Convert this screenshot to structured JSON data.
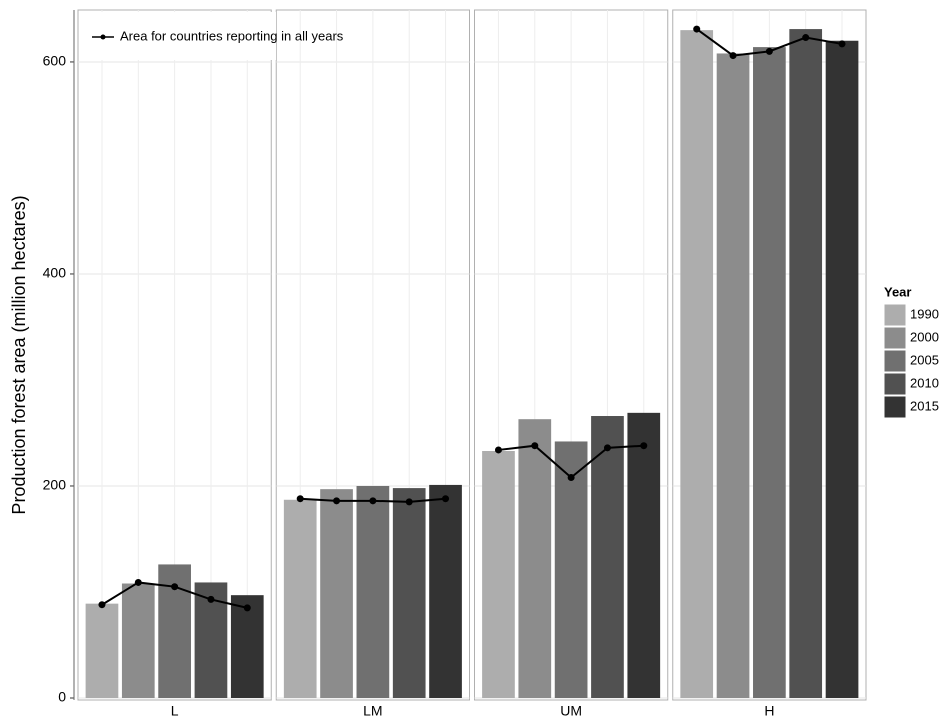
{
  "chart_data": {
    "type": "faceted-bar-line",
    "y_label": "Production forest area (million hectares)",
    "categories": [
      "L",
      "LM",
      "UM",
      "H"
    ],
    "legend_title": "Year",
    "series": [
      {
        "name": "1990",
        "color": "#adadad",
        "values": [
          89,
          187,
          233,
          630
        ]
      },
      {
        "name": "2000",
        "color": "#8c8c8c",
        "values": [
          108,
          197,
          263,
          608
        ]
      },
      {
        "name": "2005",
        "color": "#707070",
        "values": [
          126,
          200,
          242,
          614
        ]
      },
      {
        "name": "2010",
        "color": "#515151",
        "values": [
          109,
          198,
          266,
          631
        ]
      },
      {
        "name": "2015",
        "color": "#333333",
        "values": [
          97,
          201,
          269,
          620
        ]
      }
    ],
    "line": {
      "name": "Area for countries reporting in all years",
      "color": "#000000",
      "values": [
        [
          88,
          109,
          105,
          93,
          85
        ],
        [
          188,
          186,
          186,
          185,
          188
        ],
        [
          234,
          238,
          208,
          236,
          238
        ],
        [
          631,
          606,
          610,
          623,
          617
        ]
      ]
    },
    "ylim": [
      0,
      649
    ],
    "yticks": [
      0,
      200,
      400,
      600
    ],
    "grid": true
  }
}
